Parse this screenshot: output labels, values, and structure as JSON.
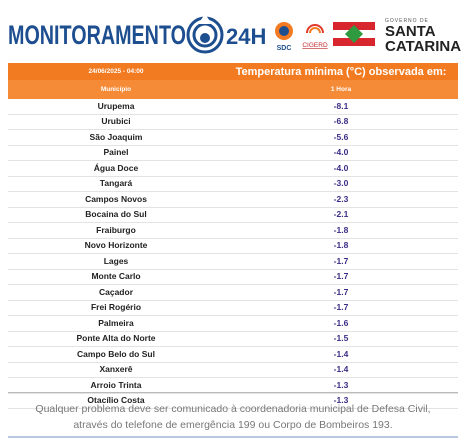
{
  "header": {
    "title": "MONITORAMENTO",
    "title_suffix": "24H",
    "sdc": "SDC",
    "cigerd": "CIGERD",
    "gov_line": "GOVERNO DE",
    "state_line1": "SANTA",
    "state_line2": "CATARINA"
  },
  "table": {
    "datetime": "24/06/2025 - 04:00",
    "heading": "Temperatura mínima (°C) observada em:",
    "col_municipio": "Município",
    "col_period": "1 Hora",
    "rows": [
      [
        "Urupema",
        "-8.1"
      ],
      [
        "Urubici",
        "-6.8"
      ],
      [
        "São Joaquim",
        "-5.6"
      ],
      [
        "Painel",
        "-4.0"
      ],
      [
        "Água Doce",
        "-4.0"
      ],
      [
        "Tangará",
        "-3.0"
      ],
      [
        "Campos Novos",
        "-2.3"
      ],
      [
        "Bocaina do Sul",
        "-2.1"
      ],
      [
        "Fraiburgo",
        "-1.8"
      ],
      [
        "Novo Horizonte",
        "-1.8"
      ],
      [
        "Lages",
        "-1.7"
      ],
      [
        "Monte Carlo",
        "-1.7"
      ],
      [
        "Caçador",
        "-1.7"
      ],
      [
        "Frei Rogério",
        "-1.7"
      ],
      [
        "Palmeira",
        "-1.6"
      ],
      [
        "Ponte Alta do Norte",
        "-1.5"
      ],
      [
        "Campo Belo do Sul",
        "-1.4"
      ],
      [
        "Xanxerê",
        "-1.4"
      ],
      [
        "Arroio Trinta",
        "-1.3"
      ],
      [
        "Otacílio Costa",
        "-1.3"
      ]
    ]
  },
  "footer": {
    "line1": "Qualquer problema deve ser comunicado à coordenadoria municipal de Defesa Civil,",
    "line2": "através do telefone de emergência 199 ou Corpo de Bombeiros 193."
  }
}
